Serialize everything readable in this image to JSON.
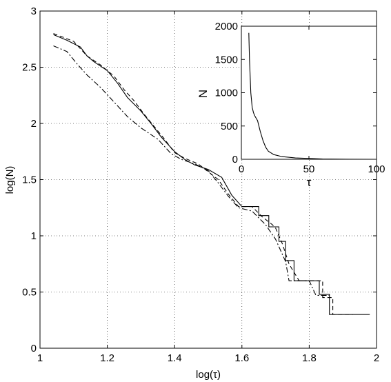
{
  "chart_data": [
    {
      "type": "line",
      "xlabel": "log(τ)",
      "ylabel": "log(N)",
      "xlim": [
        1,
        2
      ],
      "ylim": [
        0,
        3
      ],
      "xticks": [
        1,
        1.2,
        1.4,
        1.6,
        1.8,
        2
      ],
      "xtick_labels": [
        "1",
        "1.2",
        "1.4",
        "1.6",
        "1.8",
        "2"
      ],
      "yticks": [
        0,
        0.5,
        1,
        1.5,
        2,
        2.5,
        3
      ],
      "ytick_labels": [
        "0",
        "0.5",
        "1",
        "1.5",
        "2",
        "2.5",
        "3"
      ],
      "grid": true,
      "series": [
        {
          "style": "solid",
          "color": "#000000",
          "points": [
            [
              1.04,
              2.79
            ],
            [
              1.08,
              2.74
            ],
            [
              1.12,
              2.68
            ],
            [
              1.14,
              2.6
            ],
            [
              1.16,
              2.55
            ],
            [
              1.2,
              2.47
            ],
            [
              1.23,
              2.36
            ],
            [
              1.26,
              2.23
            ],
            [
              1.3,
              2.11
            ],
            [
              1.33,
              2.0
            ],
            [
              1.36,
              1.88
            ],
            [
              1.4,
              1.75
            ],
            [
              1.43,
              1.68
            ],
            [
              1.46,
              1.63
            ],
            [
              1.5,
              1.59
            ],
            [
              1.54,
              1.52
            ],
            [
              1.57,
              1.36
            ],
            [
              1.6,
              1.26
            ],
            [
              1.61,
              1.26
            ],
            [
              1.65,
              1.26
            ],
            [
              1.65,
              1.18
            ],
            [
              1.68,
              1.18
            ],
            [
              1.68,
              1.08
            ],
            [
              1.71,
              1.08
            ],
            [
              1.71,
              0.95
            ],
            [
              1.73,
              0.95
            ],
            [
              1.73,
              0.78
            ],
            [
              1.755,
              0.78
            ],
            [
              1.755,
              0.6
            ],
            [
              1.83,
              0.6
            ],
            [
              1.83,
              0.48
            ],
            [
              1.86,
              0.48
            ],
            [
              1.86,
              0.3
            ],
            [
              1.98,
              0.3
            ]
          ]
        },
        {
          "style": "dashed",
          "color": "#000000",
          "points": [
            [
              1.04,
              2.8
            ],
            [
              1.1,
              2.73
            ],
            [
              1.14,
              2.6
            ],
            [
              1.18,
              2.52
            ],
            [
              1.22,
              2.42
            ],
            [
              1.25,
              2.3
            ],
            [
              1.28,
              2.2
            ],
            [
              1.31,
              2.08
            ],
            [
              1.34,
              1.97
            ],
            [
              1.37,
              1.86
            ],
            [
              1.4,
              1.74
            ],
            [
              1.43,
              1.69
            ],
            [
              1.47,
              1.64
            ],
            [
              1.5,
              1.57
            ],
            [
              1.53,
              1.5
            ],
            [
              1.56,
              1.37
            ],
            [
              1.59,
              1.26
            ],
            [
              1.63,
              1.26
            ],
            [
              1.66,
              1.17
            ],
            [
              1.69,
              1.1
            ],
            [
              1.7,
              1.07
            ],
            [
              1.72,
              0.93
            ],
            [
              1.74,
              0.75
            ],
            [
              1.77,
              0.6
            ],
            [
              1.84,
              0.6
            ],
            [
              1.84,
              0.45
            ],
            [
              1.87,
              0.45
            ],
            [
              1.87,
              0.3
            ],
            [
              1.93,
              0.3
            ]
          ]
        },
        {
          "style": "dashdot",
          "color": "#000000",
          "points": [
            [
              1.04,
              2.69
            ],
            [
              1.08,
              2.64
            ],
            [
              1.11,
              2.53
            ],
            [
              1.14,
              2.43
            ],
            [
              1.18,
              2.32
            ],
            [
              1.22,
              2.19
            ],
            [
              1.26,
              2.06
            ],
            [
              1.3,
              1.96
            ],
            [
              1.35,
              1.86
            ],
            [
              1.39,
              1.73
            ],
            [
              1.42,
              1.68
            ],
            [
              1.46,
              1.64
            ],
            [
              1.5,
              1.58
            ],
            [
              1.53,
              1.47
            ],
            [
              1.56,
              1.35
            ],
            [
              1.59,
              1.25
            ],
            [
              1.63,
              1.22
            ],
            [
              1.67,
              1.1
            ],
            [
              1.7,
              0.97
            ],
            [
              1.73,
              0.77
            ],
            [
              1.74,
              0.6
            ],
            [
              1.8,
              0.6
            ],
            [
              1.82,
              0.47
            ],
            [
              1.86,
              0.47
            ]
          ]
        }
      ]
    },
    {
      "type": "line",
      "inset": true,
      "xlabel": "τ",
      "ylabel": "N",
      "xlim": [
        0,
        100
      ],
      "ylim": [
        0,
        2000
      ],
      "xticks": [
        0,
        50,
        100
      ],
      "xtick_labels": [
        "0",
        "50",
        "100"
      ],
      "yticks": [
        0,
        500,
        1000,
        1500,
        2000
      ],
      "ytick_labels": [
        "0",
        "500",
        "1000",
        "1500",
        "2000"
      ],
      "grid": false,
      "series": [
        {
          "style": "solid",
          "color": "#000000",
          "points": [
            [
              5.5,
              1900
            ],
            [
              6,
              1500
            ],
            [
              7,
              1000
            ],
            [
              8,
              780
            ],
            [
              9,
              700
            ],
            [
              10,
              650
            ],
            [
              12,
              580
            ],
            [
              14,
              420
            ],
            [
              16,
              280
            ],
            [
              18,
              180
            ],
            [
              20,
              120
            ],
            [
              24,
              70
            ],
            [
              30,
              40
            ],
            [
              40,
              20
            ],
            [
              60,
              5
            ],
            [
              80,
              1
            ],
            [
              100,
              0
            ]
          ]
        }
      ]
    }
  ]
}
